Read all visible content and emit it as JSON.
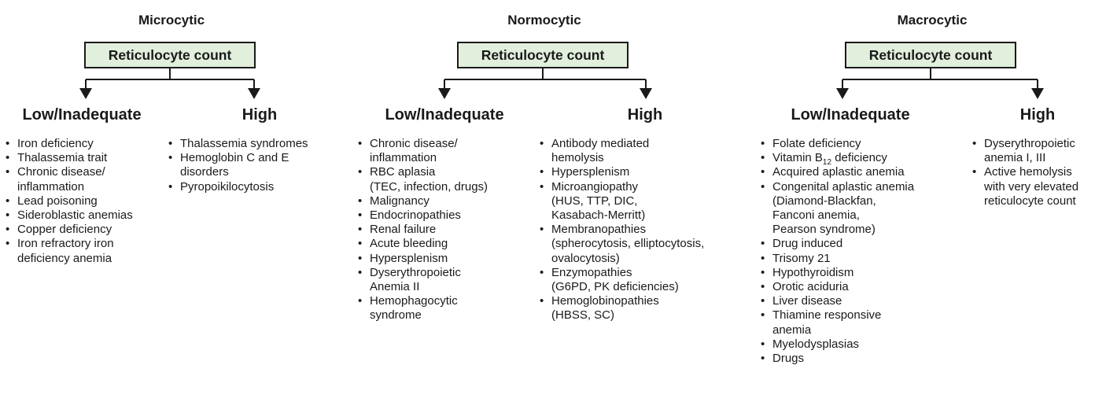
{
  "panels": [
    {
      "title": "Microcytic",
      "box": "Reticulocyte count",
      "low": {
        "label": "Low/Inadequate",
        "items": [
          [
            "Iron deficiency"
          ],
          [
            "Thalassemia trait"
          ],
          [
            "Chronic disease/",
            "inflammation"
          ],
          [
            "Lead poisoning"
          ],
          [
            "Sideroblastic anemias"
          ],
          [
            "Copper deficiency"
          ],
          [
            "Iron refractory iron",
            "deficiency anemia"
          ]
        ]
      },
      "high": {
        "label": "High",
        "items": [
          [
            "Thalassemia syndromes"
          ],
          [
            "Hemoglobin C and E",
            "disorders"
          ],
          [
            "Pyropoikilocytosis"
          ]
        ]
      }
    },
    {
      "title": "Normocytic",
      "box": "Reticulocyte count",
      "low": {
        "label": "Low/Inadequate",
        "items": [
          [
            "Chronic disease/",
            "inflammation"
          ],
          [
            "RBC aplasia",
            "(TEC, infection, drugs)"
          ],
          [
            "Malignancy"
          ],
          [
            "Endocrinopathies"
          ],
          [
            "Renal failure"
          ],
          [
            "Acute bleeding"
          ],
          [
            "Hypersplenism"
          ],
          [
            "Dyserythropoietic",
            "Anemia II"
          ],
          [
            "Hemophagocytic",
            "syndrome"
          ]
        ]
      },
      "high": {
        "label": "High",
        "items": [
          [
            "Antibody mediated",
            "hemolysis"
          ],
          [
            "Hypersplenism"
          ],
          [
            "Microangiopathy",
            "(HUS, TTP, DIC,",
            "Kasabach-Merritt)"
          ],
          [
            "Membranopathies",
            "(spherocytosis, elliptocytosis,",
            "ovalocytosis)"
          ],
          [
            "Enzymopathies",
            "(G6PD, PK deficiencies)"
          ],
          [
            "Hemoglobinopathies",
            "(HBSS, SC)"
          ]
        ]
      }
    },
    {
      "title": "Macrocytic",
      "box": "Reticulocyte count",
      "low": {
        "label": "Low/Inadequate",
        "items": [
          [
            "Folate deficiency"
          ],
          [
            "Vitamin B12 deficiency"
          ],
          [
            "Acquired aplastic anemia"
          ],
          [
            "Congenital aplastic anemia",
            "(Diamond-Blackfan,",
            "Fanconi anemia,",
            "Pearson syndrome)"
          ],
          [
            "Drug induced"
          ],
          [
            "Trisomy 21"
          ],
          [
            "Hypothyroidism"
          ],
          [
            "Orotic aciduria"
          ],
          [
            "Liver disease"
          ],
          [
            "Thiamine responsive",
            "anemia"
          ],
          [
            "Myelodysplasias"
          ],
          [
            "Drugs"
          ]
        ]
      },
      "high": {
        "label": "High",
        "items": [
          [
            "Dyserythropoietic",
            "anemia I, III"
          ],
          [
            "Active hemolysis",
            "with very elevated",
            "reticulocyte count"
          ]
        ]
      }
    }
  ],
  "colors": {
    "box_fill": "#e1efdc",
    "stroke": "#1a1a1a"
  }
}
